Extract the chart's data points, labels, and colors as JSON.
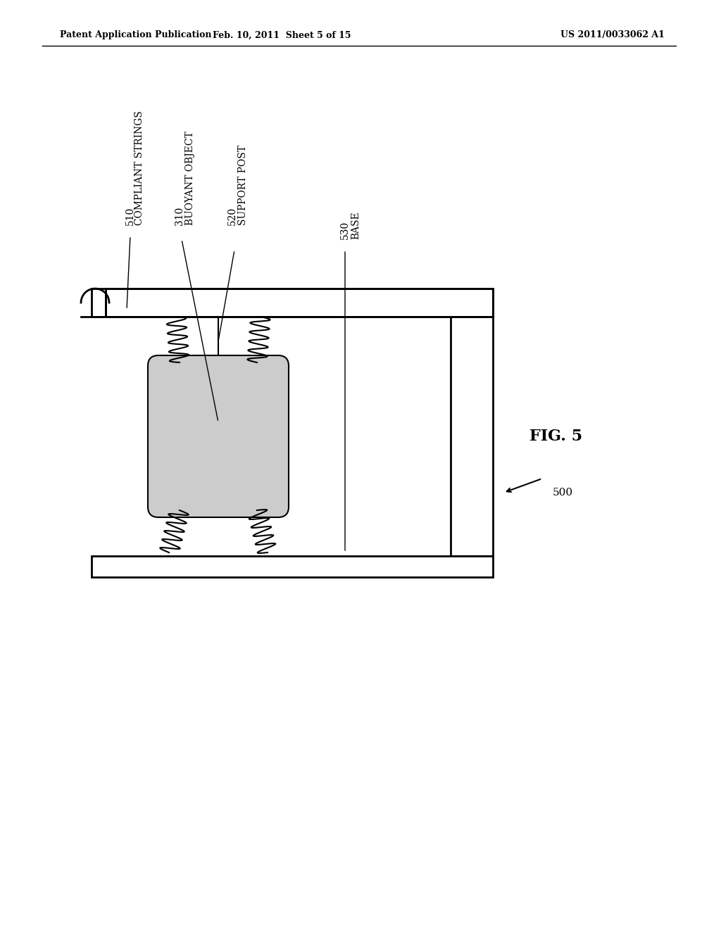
{
  "bg_color": "#ffffff",
  "header_left": "Patent Application Publication",
  "header_mid": "Feb. 10, 2011  Sheet 5 of 15",
  "header_right": "US 2011/0033062 A1",
  "fig_label": "FIG. 5",
  "ref_500": "500",
  "ref_510": "510",
  "ref_510_label": "COMPLIANT STRINGS",
  "ref_310": "310",
  "ref_310_label": "BUOYANT OBJECT",
  "ref_520": "520",
  "ref_520_label": "SUPPORT POST",
  "ref_530": "530",
  "ref_530_label": "BASE",
  "line_color": "#000000",
  "box_fill": "#cccccc",
  "box_bg": "#ffffff"
}
